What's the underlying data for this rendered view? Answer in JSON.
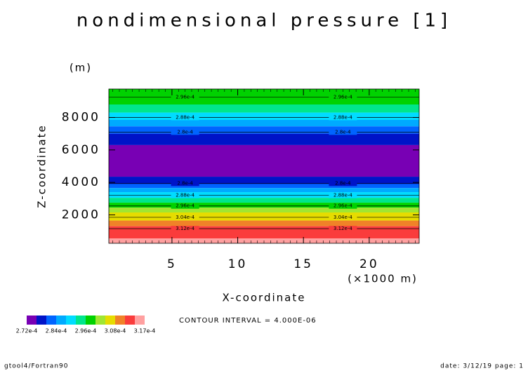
{
  "chart_data": {
    "type": "contour",
    "title": "nondimensional pressure [1]",
    "x_label": "X-coordinate",
    "x_unit": "(×1000 m)",
    "y_label": "Z-coordinate",
    "y_unit": "(m)",
    "xlim": [
      0.2,
      23.8
    ],
    "xticks": [
      5,
      10,
      15,
      20
    ],
    "ylim": [
      250,
      9750
    ],
    "yticks": [
      2000,
      4000,
      6000,
      8000
    ],
    "bands": [
      {
        "from": 8800,
        "to": 9750,
        "color": "#00d200"
      },
      {
        "from": 8300,
        "to": 8800,
        "color": "#00e68c"
      },
      {
        "from": 7850,
        "to": 8300,
        "color": "#00dcff"
      },
      {
        "from": 7450,
        "to": 7850,
        "color": "#00aaff"
      },
      {
        "from": 7000,
        "to": 7450,
        "color": "#0064ff"
      },
      {
        "from": 6300,
        "to": 7000,
        "color": "#0014c8"
      },
      {
        "from": 4350,
        "to": 6300,
        "color": "#7800b4"
      },
      {
        "from": 3900,
        "to": 4350,
        "color": "#0014c8"
      },
      {
        "from": 3650,
        "to": 3900,
        "color": "#0064ff"
      },
      {
        "from": 3400,
        "to": 3650,
        "color": "#00aaff"
      },
      {
        "from": 3050,
        "to": 3400,
        "color": "#00dcff"
      },
      {
        "from": 2750,
        "to": 3050,
        "color": "#00e68c"
      },
      {
        "from": 2450,
        "to": 2750,
        "color": "#00d200"
      },
      {
        "from": 2150,
        "to": 2450,
        "color": "#a0e632"
      },
      {
        "from": 1650,
        "to": 2150,
        "color": "#e6dc00"
      },
      {
        "from": 1300,
        "to": 1650,
        "color": "#f08228"
      },
      {
        "from": 550,
        "to": 1300,
        "color": "#fa3c3c"
      },
      {
        "from": 250,
        "to": 550,
        "color": "#ffa0a0"
      }
    ],
    "contours": [
      {
        "z": 9250,
        "label": "2.96e-4"
      },
      {
        "z": 8000,
        "label": "2.88e-4"
      },
      {
        "z": 7100,
        "label": "2.8e-4"
      },
      {
        "z": 3950,
        "label": "2.8e-4"
      },
      {
        "z": 3200,
        "label": "2.88e-4"
      },
      {
        "z": 2550,
        "label": "2.96e-4"
      },
      {
        "z": 1850,
        "label": "3.04e-4"
      },
      {
        "z": 1150,
        "label": "3.12e-4"
      }
    ],
    "contour_label_x": [
      6,
      18
    ],
    "colorbar": {
      "colors": [
        "#7800b4",
        "#0014c8",
        "#0064ff",
        "#00aaff",
        "#00dcff",
        "#00e68c",
        "#00d200",
        "#a0e632",
        "#e6dc00",
        "#f08228",
        "#fa3c3c",
        "#ffa0a0"
      ],
      "labels": [
        "2.72e-4",
        "2.84e-4",
        "2.96e-4",
        "3.08e-4",
        "3.17e-4"
      ]
    },
    "contour_interval": "CONTOUR INTERVAL = 4.000E-06",
    "footer_left": "gtool4/Fortran90",
    "footer_right": "date: 3/12/19 page: 1"
  }
}
